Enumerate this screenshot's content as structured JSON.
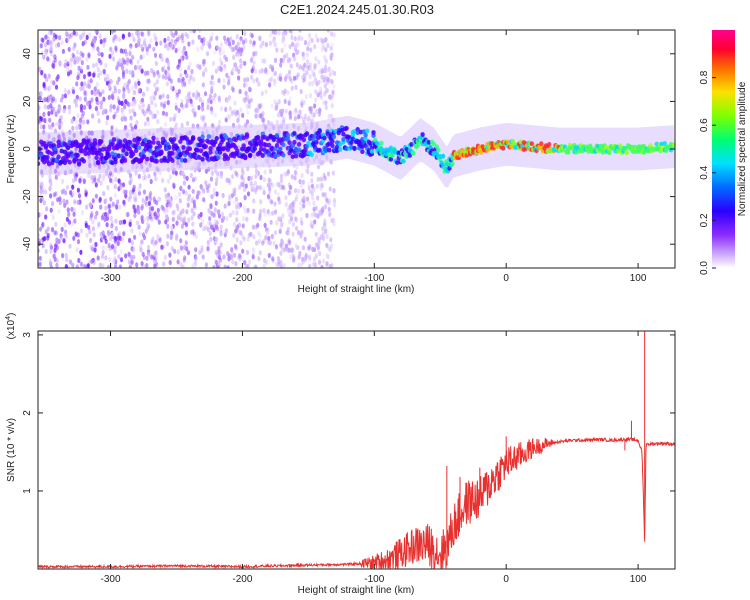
{
  "title": "C2E1.2024.245.01.30.R03",
  "chart_data": [
    {
      "type": "heatmap",
      "xlabel": "Height of straight line (km)",
      "ylabel": "Frequency (Hz)",
      "xlim": [
        -355,
        128
      ],
      "ylim": [
        -50,
        50
      ],
      "x_ticks": [
        -300,
        -200,
        -100,
        0,
        100
      ],
      "y_ticks": [
        -40,
        -20,
        0,
        20,
        40
      ],
      "colorbar": {
        "label": "Normalized spectral amplitude",
        "range": [
          0,
          1
        ],
        "ticks": [
          "0.0",
          "0.2",
          "0.4",
          "0.6",
          "0.8"
        ],
        "colors": [
          "#ffffff",
          "#9b30ff",
          "#3a00ff",
          "#0060ff",
          "#00e0ff",
          "#00ff60",
          "#a0ff00",
          "#ffe000",
          "#ff6000",
          "#ff0040",
          "#ff0080"
        ]
      },
      "ridge_center": [
        [
          -355,
          -2
        ],
        [
          -300,
          -1
        ],
        [
          -250,
          0
        ],
        [
          -200,
          1
        ],
        [
          -150,
          2
        ],
        [
          -120,
          5
        ],
        [
          -100,
          2
        ],
        [
          -80,
          -4
        ],
        [
          -65,
          4
        ],
        [
          -55,
          0
        ],
        [
          -45,
          -8
        ],
        [
          -40,
          -3
        ],
        [
          -20,
          0
        ],
        [
          0,
          2
        ],
        [
          40,
          0
        ],
        [
          100,
          0
        ],
        [
          128,
          1
        ]
      ],
      "noise_extent_x": [
        -355,
        -130
      ]
    },
    {
      "type": "line",
      "xlabel": "Height of straight line (km)",
      "ylabel": "SNR (10 * v/v)",
      "y_multiplier": "(x10",
      "y_multiplier_exp": "4",
      "y_multiplier_close": ")",
      "xlim": [
        -355,
        128
      ],
      "ylim": [
        0,
        3.05
      ],
      "x_ticks": [
        -300,
        -200,
        -100,
        0,
        100
      ],
      "y_ticks": [
        1,
        2,
        3
      ],
      "line_color": "#e8302e",
      "series": [
        {
          "x": [
            -355,
            -300,
            -250,
            -200,
            -150,
            -120,
            -100,
            -90,
            -80,
            -70,
            -60,
            -50,
            -45,
            -40,
            -35,
            -30,
            -20,
            -10,
            0,
            10,
            20,
            30,
            40,
            50,
            60,
            70,
            80,
            90,
            95,
            100,
            103,
            105,
            106,
            108,
            110,
            115,
            120,
            128
          ],
          "y": [
            0.03,
            0.03,
            0.04,
            0.03,
            0.05,
            0.06,
            0.08,
            0.12,
            0.2,
            0.3,
            0.32,
            0.2,
            0.28,
            0.55,
            0.7,
            0.85,
            0.9,
            1.15,
            1.35,
            1.45,
            1.55,
            1.6,
            1.63,
            1.65,
            1.65,
            1.66,
            1.65,
            1.66,
            1.66,
            1.65,
            1.5,
            0.35,
            1.6,
            1.6,
            1.6,
            1.61,
            1.61,
            1.6
          ],
          "spikes": [
            [
              -45,
              1.32
            ],
            [
              -35,
              1.18
            ],
            [
              -20,
              1.3
            ],
            [
              0,
              1.7
            ],
            [
              90,
              1.52
            ],
            [
              95,
              1.9
            ],
            [
              105,
              3.05
            ]
          ]
        }
      ]
    }
  ]
}
